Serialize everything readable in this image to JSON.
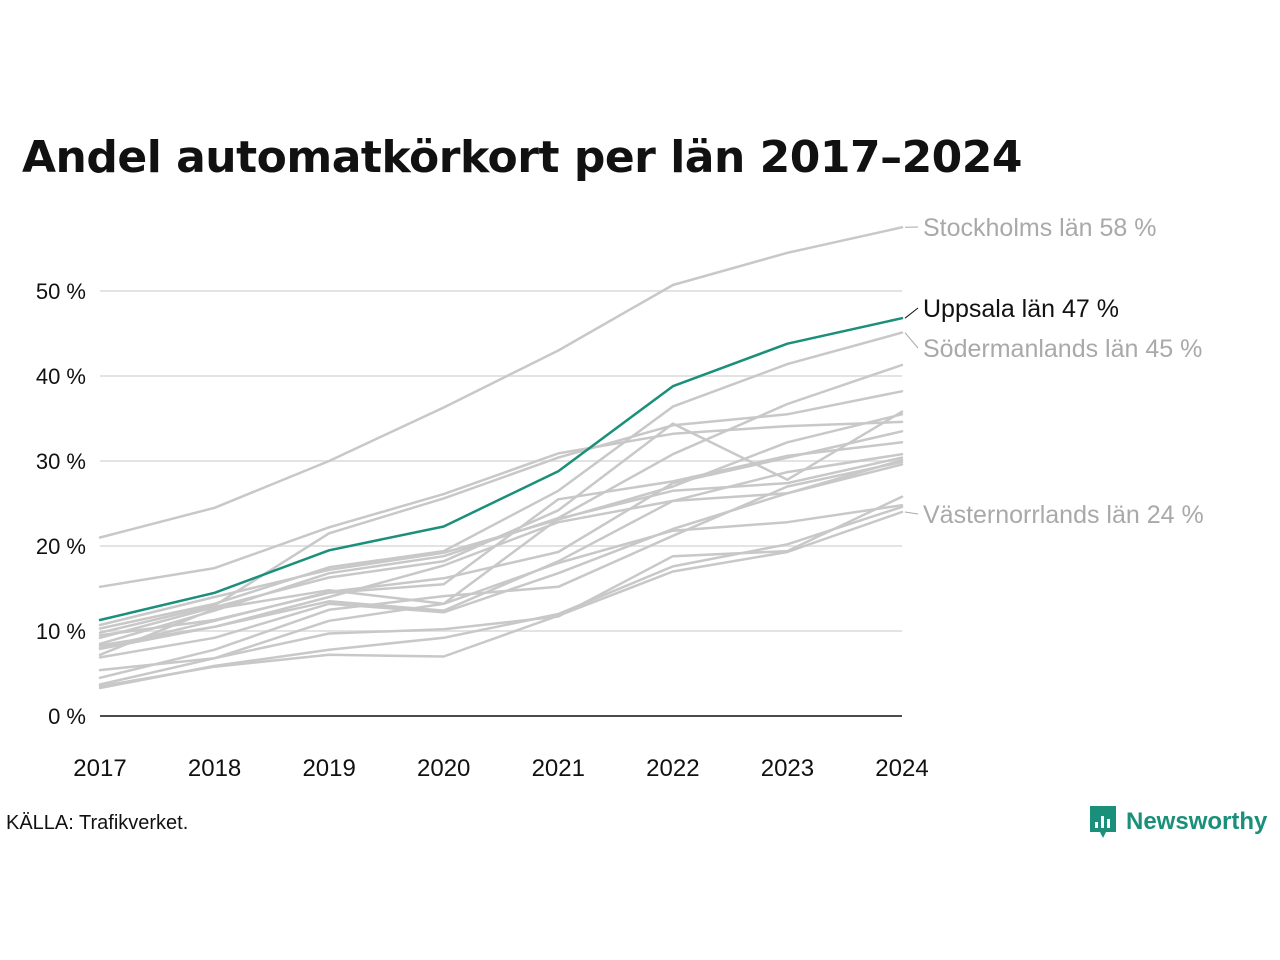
{
  "source": "KÄLLA: Trafikverket.",
  "brand": {
    "name": "Newsworthy",
    "color": "#1a8f7a",
    "icon": "newsworthy-logo-icon"
  },
  "colors": {
    "highlight": "#1a8f7a",
    "other": "#c8c8c8",
    "other_label": "#a9a9a9",
    "axis": "#111111",
    "grid": "#e3e3e3"
  },
  "chart_data": {
    "type": "line",
    "title": "Andel automatkörkort per län 2017–2024",
    "xlabel": "",
    "ylabel": "",
    "x": [
      "2017",
      "2018",
      "2019",
      "2020",
      "2021",
      "2022",
      "2023",
      "2024"
    ],
    "ylim": [
      0,
      58
    ],
    "yticks": [
      0,
      10,
      20,
      30,
      40,
      50
    ],
    "ytick_labels": [
      "0 %",
      "10 %",
      "20 %",
      "30 %",
      "40 %",
      "50 %"
    ],
    "grid": true,
    "series": [
      {
        "name": "Stockholms län",
        "label": "Stockholms län 58 %",
        "highlight": false,
        "values": [
          21,
          24.5,
          30,
          36.3,
          43,
          50.7,
          54.5,
          57.5
        ]
      },
      {
        "name": "Uppsala län",
        "label": "Uppsala län 47 %",
        "highlight": true,
        "values": [
          11.3,
          14.5,
          19.5,
          22.3,
          28.8,
          38.8,
          43.8,
          46.8
        ]
      },
      {
        "name": "Södermanlands län",
        "label": "Södermanlands län 45 %",
        "highlight": false,
        "values": [
          10.3,
          13.2,
          17.5,
          19.4,
          26.5,
          36.4,
          41.4,
          45.1
        ]
      },
      {
        "name": "Västernorrlands län",
        "label": "Västernorrlands län 24 %",
        "highlight": false,
        "values": [
          3.5,
          5.8,
          7.2,
          7,
          11.8,
          17,
          19.3,
          24
        ]
      },
      {
        "values": [
          15.2,
          17.4,
          22.2,
          26.1,
          30.9,
          33.2,
          34.1,
          34.6
        ]
      },
      {
        "values": [
          9.8,
          13,
          21.5,
          25.6,
          30.4,
          34.2,
          35.5,
          38.2
        ]
      },
      {
        "values": [
          8.5,
          12.4,
          16.8,
          18.8,
          23.3,
          30.8,
          36.7,
          41.3
        ]
      },
      {
        "values": [
          9.2,
          12.8,
          16.3,
          18.2,
          24.2,
          34.4,
          27.8,
          35.8
        ]
      },
      {
        "values": [
          10.7,
          14,
          17.2,
          19.2,
          23.1,
          27,
          32.2,
          35.5
        ]
      },
      {
        "values": [
          8,
          11.2,
          14.6,
          16.2,
          19.3,
          27.4,
          30.4,
          33.5
        ]
      },
      {
        "values": [
          9.5,
          11.3,
          14.5,
          15.5,
          25.5,
          27.6,
          30.6,
          32.2
        ]
      },
      {
        "values": [
          7.9,
          10.5,
          14,
          17.7,
          22.8,
          25.3,
          28.7,
          30.8
        ]
      },
      {
        "values": [
          7.2,
          12.6,
          14.8,
          13.2,
          23.2,
          26.5,
          27.4,
          30.4
        ]
      },
      {
        "values": [
          8.3,
          10.5,
          13.5,
          12.4,
          18.2,
          25.3,
          26.2,
          30.1
        ]
      },
      {
        "values": [
          6.9,
          9.2,
          13.2,
          12.2,
          16.8,
          22,
          26.2,
          29.6
        ]
      },
      {
        "values": [
          4.5,
          7.8,
          12.5,
          14.1,
          15.2,
          21.2,
          27,
          29.9
        ]
      },
      {
        "values": [
          3.7,
          6.8,
          11.2,
          13.2,
          18,
          21.8,
          22.8,
          24.8
        ]
      },
      {
        "values": [
          5.4,
          6.8,
          9.7,
          10.2,
          11.7,
          18.8,
          19.4,
          25.8
        ]
      },
      {
        "values": [
          3.3,
          5.9,
          7.8,
          9.2,
          12,
          17.6,
          20.2,
          24.6
        ]
      }
    ]
  }
}
